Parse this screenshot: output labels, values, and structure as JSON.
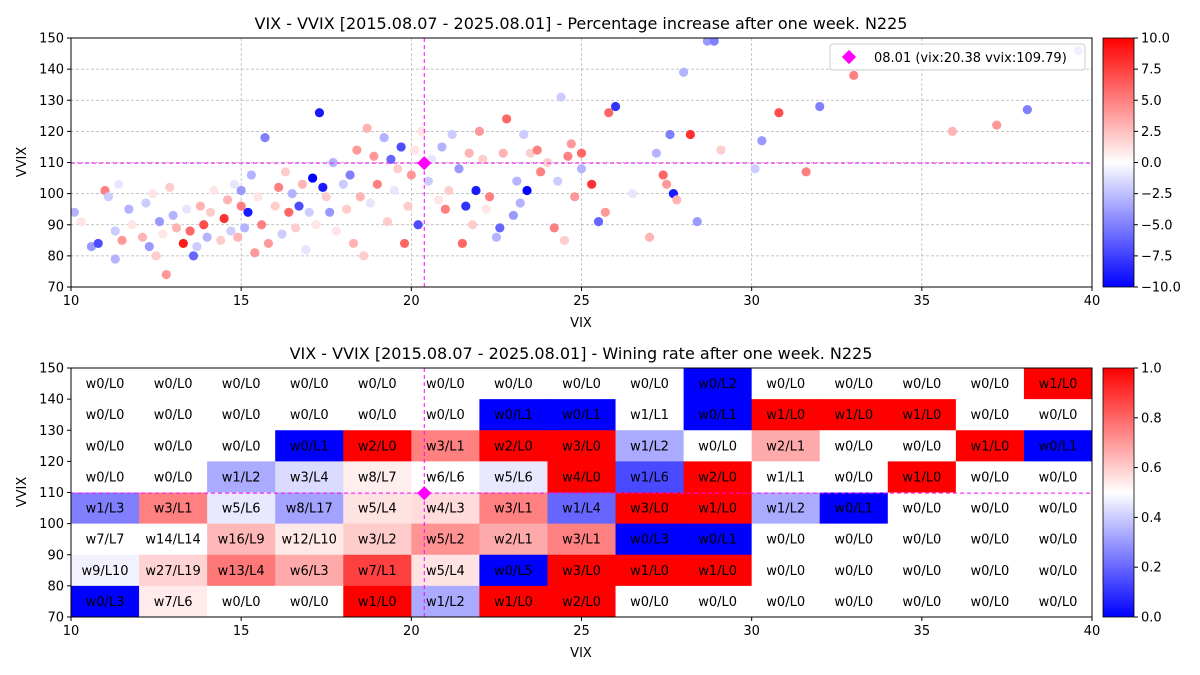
{
  "chart_data": [
    {
      "type": "scatter",
      "title": "VIX - VVIX [2015.08.07 - 2025.08.01]  - Percentage increase after one week. N225",
      "xlabel": "VIX",
      "ylabel": "VVIX",
      "xlim": [
        10,
        40
      ],
      "ylim": [
        70,
        150
      ],
      "xticks": [
        "10",
        "15",
        "20",
        "25",
        "30",
        "35",
        "40"
      ],
      "yticks": [
        "70",
        "80",
        "90",
        "100",
        "110",
        "120",
        "130",
        "140",
        "150"
      ],
      "grid": true,
      "legend_position": "top-right",
      "marker": {
        "label": "08.01 (vix:20.38 vvix:109.79)",
        "x": 20.38,
        "y": 109.79,
        "color": "#ff00ff"
      },
      "colorbar": {
        "min": -10,
        "max": 10,
        "ticks": [
          "10.0",
          "7.5",
          "5.0",
          "2.5",
          "0.0",
          "−2.5",
          "−5.0",
          "−7.5",
          "−10.0"
        ],
        "colormap": "bwr"
      },
      "points": [
        [
          10.1,
          94,
          -3
        ],
        [
          10.3,
          91,
          1
        ],
        [
          10.6,
          83,
          -4
        ],
        [
          10.8,
          84,
          -7
        ],
        [
          11,
          101,
          5
        ],
        [
          11.1,
          99,
          -2
        ],
        [
          11.3,
          88,
          -2
        ],
        [
          11.3,
          79,
          -3
        ],
        [
          11.4,
          103,
          -1
        ],
        [
          11.5,
          85,
          4
        ],
        [
          11.7,
          95,
          -3
        ],
        [
          11.8,
          90,
          1
        ],
        [
          12,
          82,
          0
        ],
        [
          12.1,
          86,
          3
        ],
        [
          12.2,
          97,
          -2
        ],
        [
          12.3,
          83,
          -4
        ],
        [
          12.4,
          100,
          1
        ],
        [
          12.5,
          80,
          2
        ],
        [
          12.6,
          91,
          -4
        ],
        [
          12.7,
          87,
          1
        ],
        [
          12.8,
          74,
          4
        ],
        [
          12.9,
          102,
          2
        ],
        [
          13,
          93,
          -3
        ],
        [
          13.1,
          89,
          3
        ],
        [
          13.2,
          78,
          0
        ],
        [
          13.3,
          84,
          9
        ],
        [
          13.4,
          95,
          -1
        ],
        [
          13.5,
          88,
          6
        ],
        [
          13.6,
          80,
          -6
        ],
        [
          13.7,
          83,
          -2
        ],
        [
          13.8,
          96,
          3
        ],
        [
          13.9,
          90,
          7
        ],
        [
          14,
          86,
          -3
        ],
        [
          14.1,
          94,
          2
        ],
        [
          14.2,
          101,
          1
        ],
        [
          14.4,
          85,
          2
        ],
        [
          14.5,
          92,
          8
        ],
        [
          14.6,
          98,
          3
        ],
        [
          14.7,
          88,
          -2
        ],
        [
          14.8,
          103,
          -1
        ],
        [
          14.9,
          86,
          3
        ],
        [
          15,
          96,
          5
        ],
        [
          15,
          101,
          -4
        ],
        [
          15.1,
          89,
          -3
        ],
        [
          15.2,
          94,
          -9
        ],
        [
          15.3,
          106,
          -3
        ],
        [
          15.4,
          81,
          4
        ],
        [
          15.5,
          99,
          1
        ],
        [
          15.6,
          90,
          5
        ],
        [
          15.7,
          118,
          -5
        ],
        [
          15.8,
          84,
          4
        ],
        [
          16,
          96,
          2
        ],
        [
          16.1,
          102,
          5
        ],
        [
          16.2,
          87,
          -2
        ],
        [
          16.3,
          107,
          2
        ],
        [
          16.4,
          94,
          6
        ],
        [
          16.5,
          100,
          -3
        ],
        [
          16.6,
          89,
          2
        ],
        [
          16.7,
          96,
          -7
        ],
        [
          16.8,
          103,
          3
        ],
        [
          16.9,
          82,
          -1
        ],
        [
          17,
          94,
          -2
        ],
        [
          17.1,
          105,
          -10
        ],
        [
          17.2,
          90,
          1
        ],
        [
          17.3,
          126,
          -9
        ],
        [
          17.4,
          102,
          -9
        ],
        [
          17.5,
          99,
          2
        ],
        [
          17.6,
          94,
          -4
        ],
        [
          17.7,
          110,
          -3
        ],
        [
          17.8,
          88,
          1
        ],
        [
          18,
          103,
          -2
        ],
        [
          18.1,
          95,
          2
        ],
        [
          18.2,
          106,
          -5
        ],
        [
          18.3,
          84,
          3
        ],
        [
          18.4,
          114,
          4
        ],
        [
          18.5,
          99,
          3
        ],
        [
          18.6,
          80,
          2
        ],
        [
          18.7,
          121,
          3
        ],
        [
          18.8,
          97,
          -1
        ],
        [
          18.9,
          112,
          4
        ],
        [
          19,
          103,
          5
        ],
        [
          19.2,
          118,
          -3
        ],
        [
          19.3,
          91,
          2
        ],
        [
          19.4,
          111,
          -6
        ],
        [
          19.5,
          101,
          -1
        ],
        [
          19.6,
          108,
          2
        ],
        [
          19.7,
          115,
          -7
        ],
        [
          19.8,
          84,
          6
        ],
        [
          19.9,
          96,
          2
        ],
        [
          20,
          106,
          4
        ],
        [
          20.1,
          114,
          1
        ],
        [
          20.2,
          90,
          -7
        ],
        [
          20.3,
          120,
          1
        ],
        [
          20.5,
          104,
          -2
        ],
        [
          20.6,
          111,
          -1
        ],
        [
          20.8,
          98,
          1
        ],
        [
          20.9,
          115,
          -3
        ],
        [
          21,
          95,
          5
        ],
        [
          21.1,
          101,
          2
        ],
        [
          21.2,
          119,
          -2
        ],
        [
          21.4,
          108,
          -4
        ],
        [
          21.5,
          84,
          6
        ],
        [
          21.6,
          96,
          -8
        ],
        [
          21.7,
          113,
          3
        ],
        [
          21.8,
          90,
          2
        ],
        [
          21.9,
          101,
          -9
        ],
        [
          22,
          120,
          4
        ],
        [
          22.1,
          111,
          2
        ],
        [
          22.2,
          95,
          1
        ],
        [
          22.3,
          99,
          5
        ],
        [
          22.5,
          86,
          -3
        ],
        [
          22.6,
          89,
          -6
        ],
        [
          22.7,
          113,
          3
        ],
        [
          22.8,
          124,
          6
        ],
        [
          23,
          93,
          -4
        ],
        [
          23.1,
          104,
          -3
        ],
        [
          23.2,
          97,
          -3
        ],
        [
          23.3,
          119,
          -2
        ],
        [
          23.4,
          101,
          -10
        ],
        [
          23.5,
          113,
          2
        ],
        [
          23.7,
          114,
          5
        ],
        [
          23.8,
          107,
          5
        ],
        [
          24,
          110,
          2
        ],
        [
          24.2,
          89,
          5
        ],
        [
          24.3,
          104,
          -2
        ],
        [
          24.4,
          131,
          -2
        ],
        [
          24.5,
          85,
          2
        ],
        [
          24.6,
          112,
          5
        ],
        [
          24.7,
          116,
          4
        ],
        [
          24.8,
          99,
          4
        ],
        [
          25,
          108,
          -3
        ],
        [
          25,
          113,
          6
        ],
        [
          25.3,
          103,
          8
        ],
        [
          25.5,
          91,
          -6
        ],
        [
          25.7,
          94,
          4
        ],
        [
          25.8,
          126,
          6
        ],
        [
          26,
          128,
          -8
        ],
        [
          26.5,
          100,
          -1
        ],
        [
          27,
          86,
          3
        ],
        [
          27.2,
          113,
          -3
        ],
        [
          27.4,
          106,
          6
        ],
        [
          27.5,
          103,
          4
        ],
        [
          27.6,
          119,
          -5
        ],
        [
          27.7,
          100,
          -9
        ],
        [
          27.8,
          98,
          3
        ],
        [
          28,
          139,
          -3
        ],
        [
          28.2,
          119,
          8
        ],
        [
          28.4,
          91,
          -4
        ],
        [
          28.7,
          149,
          -4
        ],
        [
          28.9,
          149,
          -5
        ],
        [
          29.1,
          114,
          2
        ],
        [
          30.1,
          108,
          -2
        ],
        [
          30.3,
          117,
          -4
        ],
        [
          30.8,
          126,
          7
        ],
        [
          31.6,
          107,
          5
        ],
        [
          32,
          128,
          -5
        ],
        [
          33,
          138,
          5
        ],
        [
          35.9,
          120,
          3
        ],
        [
          37.2,
          122,
          4
        ],
        [
          38.1,
          127,
          -5
        ],
        [
          39.6,
          146,
          -4
        ]
      ]
    },
    {
      "type": "heatmap",
      "title": "VIX - VVIX [2015.08.07 - 2025.08.01]  - Wining rate after one week. N225",
      "xlabel": "VIX",
      "ylabel": "VVIX",
      "xlim": [
        10,
        40
      ],
      "ylim": [
        70,
        150
      ],
      "xticks": [
        "10",
        "15",
        "20",
        "25",
        "30",
        "35",
        "40"
      ],
      "yticks": [
        "70",
        "80",
        "90",
        "100",
        "110",
        "120",
        "130",
        "140",
        "150"
      ],
      "marker": {
        "x": 20.38,
        "y": 109.79,
        "color": "#ff00ff"
      },
      "colorbar": {
        "min": 0,
        "max": 1,
        "ticks": [
          "1.0",
          "0.8",
          "0.6",
          "0.4",
          "0.2",
          "0.0"
        ],
        "colormap": "bwr"
      },
      "x_bins": [
        10,
        12,
        14,
        16,
        18,
        20,
        22,
        24,
        26,
        28,
        30,
        32,
        34,
        36,
        38,
        40
      ],
      "y_bins": [
        70,
        80,
        90,
        100,
        110,
        120,
        130,
        140,
        150
      ],
      "rows_top_to_bottom": [
        [
          "w0/L0",
          "w0/L0",
          "w0/L0",
          "w0/L0",
          "w0/L0",
          "w0/L0",
          "w0/L0",
          "w0/L0",
          "w0/L0",
          "w0/L2",
          "w0/L0",
          "w0/L0",
          "w0/L0",
          "w0/L0",
          "w1/L0"
        ],
        [
          "w0/L0",
          "w0/L0",
          "w0/L0",
          "w0/L0",
          "w0/L0",
          "w0/L0",
          "w0/L1",
          "w0/L1",
          "w1/L1",
          "w0/L1",
          "w1/L0",
          "w1/L0",
          "w1/L0",
          "w0/L0",
          "w0/L0"
        ],
        [
          "w0/L0",
          "w0/L0",
          "w0/L0",
          "w0/L1",
          "w2/L0",
          "w3/L1",
          "w2/L0",
          "w3/L0",
          "w1/L2",
          "w0/L0",
          "w2/L1",
          "w0/L0",
          "w0/L0",
          "w1/L0",
          "w0/L1"
        ],
        [
          "w0/L0",
          "w0/L0",
          "w1/L2",
          "w3/L4",
          "w8/L7",
          "w6/L6",
          "w5/L6",
          "w4/L0",
          "w1/L6",
          "w2/L0",
          "w1/L1",
          "w0/L0",
          "w1/L0",
          "w0/L0",
          "w0/L0"
        ],
        [
          "w1/L3",
          "w3/L1",
          "w5/L6",
          "w8/L17",
          "w5/L4",
          "w4/L3",
          "w3/L1",
          "w1/L4",
          "w3/L0",
          "w1/L0",
          "w1/L2",
          "w0/L1",
          "w0/L0",
          "w0/L0",
          "w0/L0"
        ],
        [
          "w7/L7",
          "w14/L14",
          "w16/L9",
          "w12/L10",
          "w3/L2",
          "w5/L2",
          "w2/L1",
          "w3/L1",
          "w0/L3",
          "w0/L1",
          "w0/L0",
          "w0/L0",
          "w0/L0",
          "w0/L0",
          "w0/L0"
        ],
        [
          "w9/L10",
          "w27/L19",
          "w13/L4",
          "w6/L3",
          "w7/L1",
          "w5/L4",
          "w0/L5",
          "w3/L0",
          "w1/L0",
          "w1/L0",
          "w0/L0",
          "w0/L0",
          "w0/L0",
          "w0/L0",
          "w0/L0"
        ],
        [
          "w0/L3",
          "w7/L6",
          "w0/L0",
          "w0/L0",
          "w1/L0",
          "w1/L2",
          "w1/L0",
          "w2/L0",
          "w0/L0",
          "w0/L0",
          "w0/L0",
          "w0/L0",
          "w0/L0",
          "w0/L0",
          "w0/L0"
        ]
      ]
    }
  ]
}
